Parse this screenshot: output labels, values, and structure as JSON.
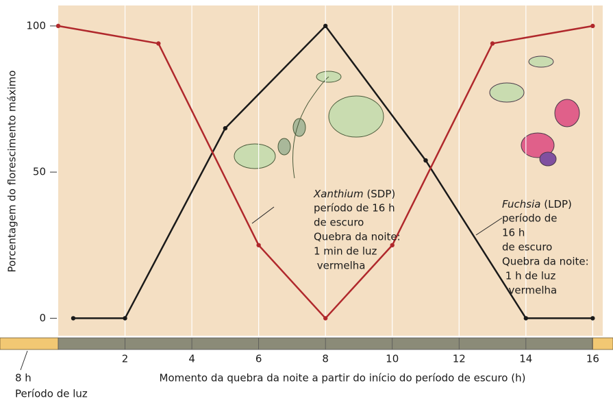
{
  "chart_data": {
    "type": "line",
    "x_label": "Momento da quebra da noite a partir do início do período de escuro (h)",
    "y_label": "Porcentagem do florescimento máximo",
    "light_label": "8 h",
    "light_caption": "Período de luz",
    "xlim": [
      0,
      16.3
    ],
    "ylim": [
      -6,
      107
    ],
    "xticks": [
      2,
      4,
      6,
      8,
      10,
      12,
      14,
      16
    ],
    "yticks": [
      0,
      50,
      100
    ],
    "grid": true,
    "series": [
      {
        "name": "Xanthium",
        "tag": "(SDP)",
        "color": "#1a1a1a",
        "x": [
          0.45,
          2,
          5,
          8,
          11,
          14,
          16
        ],
        "values": [
          0,
          0,
          65,
          100,
          54,
          0,
          0
        ],
        "note": [
          "período de 16 h",
          "de escuro",
          "Quebra da noite:",
          "1 min de luz",
          " vermelha"
        ]
      },
      {
        "name": "Fuchsia",
        "tag": "(LDP)",
        "color": "#b0282c",
        "x": [
          0,
          3,
          6,
          8,
          10,
          13,
          16
        ],
        "values": [
          100,
          94,
          25,
          0,
          25,
          94,
          100
        ],
        "note": [
          "período de",
          "16 h",
          "de escuro",
          "Quebra da noite:",
          " 1 h de luz",
          "  vermelha"
        ]
      }
    ]
  }
}
